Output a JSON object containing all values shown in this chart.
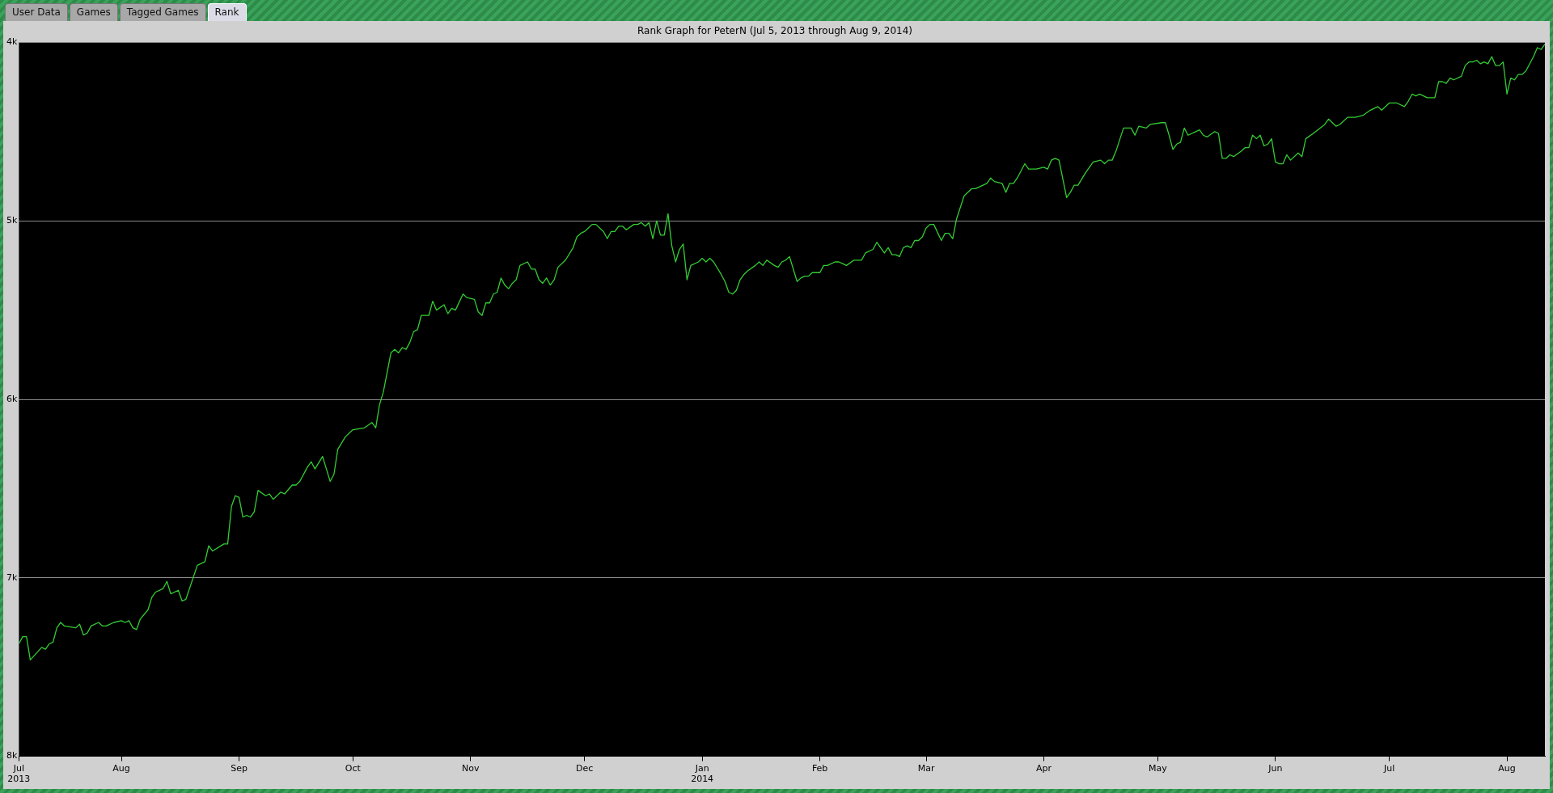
{
  "chart_data": {
    "type": "line",
    "title": "Rank Graph for PeterN (Jul 5, 2013 through Aug 9, 2014)",
    "annotations": [
      "User Data",
      "Games",
      "Tagged Games",
      "Rank"
    ],
    "color": "#33cc33",
    "grid": "y",
    "legend": false,
    "ylim": [
      8,
      4
    ],
    "yticks": [
      {
        "value": 4,
        "label": "4k"
      },
      {
        "value": 5,
        "label": "5k"
      },
      {
        "value": 6,
        "label": "6k"
      },
      {
        "value": 7,
        "label": "7k"
      },
      {
        "value": 8,
        "label": "8k"
      }
    ],
    "xlim": [
      "2013-07-05",
      "2014-08-11"
    ],
    "xticks": [
      {
        "value": "2013-07-05",
        "label": "Jul\n2013"
      },
      {
        "value": "2013-08-01",
        "label": "Aug"
      },
      {
        "value": "2013-09-01",
        "label": "Sep"
      },
      {
        "value": "2013-10-01",
        "label": "Oct"
      },
      {
        "value": "2013-11-01",
        "label": "Nov"
      },
      {
        "value": "2013-12-01",
        "label": "Dec"
      },
      {
        "value": "2014-01-01",
        "label": "Jan\n2014"
      },
      {
        "value": "2014-02-01",
        "label": "Feb"
      },
      {
        "value": "2014-03-01",
        "label": "Mar"
      },
      {
        "value": "2014-04-01",
        "label": "Apr"
      },
      {
        "value": "2014-05-01",
        "label": "May"
      },
      {
        "value": "2014-06-01",
        "label": "Jun"
      },
      {
        "value": "2014-07-01",
        "label": "Jul"
      },
      {
        "value": "2014-08-01",
        "label": "Aug"
      }
    ],
    "x": [
      "2013-07-05",
      "2013-07-06",
      "2013-07-07",
      "2013-07-08",
      "2013-07-11",
      "2013-07-12",
      "2013-07-13",
      "2013-07-14",
      "2013-07-15",
      "2013-07-16",
      "2013-07-17",
      "2013-07-20",
      "2013-07-21",
      "2013-07-22",
      "2013-07-23",
      "2013-07-24",
      "2013-07-26",
      "2013-07-27",
      "2013-07-28",
      "2013-07-30",
      "2013-08-01",
      "2013-08-02",
      "2013-08-03",
      "2013-08-04",
      "2013-08-05",
      "2013-08-06",
      "2013-08-08",
      "2013-08-09",
      "2013-08-10",
      "2013-08-12",
      "2013-08-13",
      "2013-08-14",
      "2013-08-16",
      "2013-08-17",
      "2013-08-18",
      "2013-08-21",
      "2013-08-23",
      "2013-08-24",
      "2013-08-25",
      "2013-08-28",
      "2013-08-29",
      "2013-08-30",
      "2013-08-31",
      "2013-09-01",
      "2013-09-02",
      "2013-09-03",
      "2013-09-04",
      "2013-09-05",
      "2013-09-06",
      "2013-09-08",
      "2013-09-09",
      "2013-09-10",
      "2013-09-12",
      "2013-09-13",
      "2013-09-15",
      "2013-09-16",
      "2013-09-17",
      "2013-09-19",
      "2013-09-20",
      "2013-09-21",
      "2013-09-23",
      "2013-09-25",
      "2013-09-26",
      "2013-09-27",
      "2013-09-29",
      "2013-10-01",
      "2013-10-04",
      "2013-10-06",
      "2013-10-07",
      "2013-10-08",
      "2013-10-09",
      "2013-10-11",
      "2013-10-12",
      "2013-10-13",
      "2013-10-14",
      "2013-10-15",
      "2013-10-16",
      "2013-10-17",
      "2013-10-18",
      "2013-10-19",
      "2013-10-21",
      "2013-10-22",
      "2013-10-23",
      "2013-10-25",
      "2013-10-26",
      "2013-10-27",
      "2013-10-28",
      "2013-10-30",
      "2013-10-31",
      "2013-11-02",
      "2013-11-03",
      "2013-11-04",
      "2013-11-05",
      "2013-11-06",
      "2013-11-07",
      "2013-11-08",
      "2013-11-09",
      "2013-11-10",
      "2013-11-11",
      "2013-11-12",
      "2013-11-13",
      "2013-11-14",
      "2013-11-16",
      "2013-11-17",
      "2013-11-18",
      "2013-11-19",
      "2013-11-20",
      "2013-11-21",
      "2013-11-22",
      "2013-11-23",
      "2013-11-24",
      "2013-11-26",
      "2013-11-28",
      "2013-11-29",
      "2013-11-30",
      "2013-12-01",
      "2013-12-03",
      "2013-12-04",
      "2013-12-06",
      "2013-12-07",
      "2013-12-08",
      "2013-12-09",
      "2013-12-10",
      "2013-12-11",
      "2013-12-12",
      "2013-12-14",
      "2013-12-15",
      "2013-12-16",
      "2013-12-17",
      "2013-12-18",
      "2013-12-19",
      "2013-12-20",
      "2013-12-21",
      "2013-12-22",
      "2013-12-23",
      "2013-12-24",
      "2013-12-25",
      "2013-12-26",
      "2013-12-27",
      "2013-12-28",
      "2013-12-29",
      "2013-12-31",
      "2014-01-01",
      "2014-01-02",
      "2014-01-03",
      "2014-01-04",
      "2014-01-06",
      "2014-01-07",
      "2014-01-08",
      "2014-01-09",
      "2014-01-10",
      "2014-01-11",
      "2014-01-12",
      "2014-01-13",
      "2014-01-15",
      "2014-01-16",
      "2014-01-17",
      "2014-01-18",
      "2014-01-20",
      "2014-01-21",
      "2014-01-22",
      "2014-01-23",
      "2014-01-24",
      "2014-01-26",
      "2014-01-27",
      "2014-01-28",
      "2014-01-29",
      "2014-01-30",
      "2014-02-01",
      "2014-02-02",
      "2014-02-03",
      "2014-02-05",
      "2014-02-06",
      "2014-02-07",
      "2014-02-08",
      "2014-02-10",
      "2014-02-12",
      "2014-02-13",
      "2014-02-15",
      "2014-02-16",
      "2014-02-17",
      "2014-02-18",
      "2014-02-19",
      "2014-02-20",
      "2014-02-21",
      "2014-02-22",
      "2014-02-23",
      "2014-02-24",
      "2014-02-25",
      "2014-02-26",
      "2014-02-27",
      "2014-02-28",
      "2014-03-01",
      "2014-03-02",
      "2014-03-03",
      "2014-03-05",
      "2014-03-06",
      "2014-03-07",
      "2014-03-08",
      "2014-03-09",
      "2014-03-11",
      "2014-03-13",
      "2014-03-14",
      "2014-03-17",
      "2014-03-18",
      "2014-03-19",
      "2014-03-21",
      "2014-03-22",
      "2014-03-23",
      "2014-03-24",
      "2014-03-25",
      "2014-03-27",
      "2014-03-28",
      "2014-03-30",
      "2014-04-01",
      "2014-04-02",
      "2014-04-03",
      "2014-04-04",
      "2014-04-05",
      "2014-04-07",
      "2014-04-08",
      "2014-04-09",
      "2014-04-10",
      "2014-04-12",
      "2014-04-14",
      "2014-04-16",
      "2014-04-17",
      "2014-04-18",
      "2014-04-19",
      "2014-04-20",
      "2014-04-22",
      "2014-04-24",
      "2014-04-25",
      "2014-04-26",
      "2014-04-28",
      "2014-04-29",
      "2014-05-02",
      "2014-05-03",
      "2014-05-04",
      "2014-05-05",
      "2014-05-06",
      "2014-05-07",
      "2014-05-08",
      "2014-05-09",
      "2014-05-11",
      "2014-05-12",
      "2014-05-13",
      "2014-05-14",
      "2014-05-16",
      "2014-05-17",
      "2014-05-18",
      "2014-05-19",
      "2014-05-20",
      "2014-05-21",
      "2014-05-23",
      "2014-05-24",
      "2014-05-25",
      "2014-05-26",
      "2014-05-27",
      "2014-05-28",
      "2014-05-29",
      "2014-05-30",
      "2014-05-31",
      "2014-06-01",
      "2014-06-02",
      "2014-06-03",
      "2014-06-04",
      "2014-06-05",
      "2014-06-07",
      "2014-06-08",
      "2014-06-09",
      "2014-06-11",
      "2014-06-14",
      "2014-06-15",
      "2014-06-17",
      "2014-06-18",
      "2014-06-20",
      "2014-06-21",
      "2014-06-22",
      "2014-06-24",
      "2014-06-26",
      "2014-06-28",
      "2014-06-29",
      "2014-07-01",
      "2014-07-03",
      "2014-07-05",
      "2014-07-06",
      "2014-07-07",
      "2014-07-08",
      "2014-07-09",
      "2014-07-11",
      "2014-07-13",
      "2014-07-14",
      "2014-07-15",
      "2014-07-16",
      "2014-07-17",
      "2014-07-18",
      "2014-07-20",
      "2014-07-21",
      "2014-07-22",
      "2014-07-23",
      "2014-07-24",
      "2014-07-25",
      "2014-07-26",
      "2014-07-27",
      "2014-07-28",
      "2014-07-29",
      "2014-07-30",
      "2014-07-31",
      "2014-08-01",
      "2014-08-02",
      "2014-08-03",
      "2014-08-04",
      "2014-08-05",
      "2014-08-06",
      "2014-08-08",
      "2014-08-09",
      "2014-08-10",
      "2014-08-11"
    ],
    "values": [
      7.37,
      7.33,
      7.33,
      7.46,
      7.39,
      7.4,
      7.37,
      7.36,
      7.28,
      7.25,
      7.27,
      7.28,
      7.26,
      7.32,
      7.31,
      7.27,
      7.25,
      7.27,
      7.27,
      7.25,
      7.24,
      7.25,
      7.24,
      7.28,
      7.29,
      7.23,
      7.18,
      7.11,
      7.08,
      7.06,
      7.02,
      7.09,
      7.07,
      7.13,
      7.12,
      6.93,
      6.91,
      6.82,
      6.85,
      6.81,
      6.81,
      6.6,
      6.54,
      6.55,
      6.66,
      6.65,
      6.66,
      6.63,
      6.51,
      6.54,
      6.53,
      6.56,
      6.52,
      6.53,
      6.48,
      6.48,
      6.46,
      6.38,
      6.35,
      6.39,
      6.32,
      6.46,
      6.42,
      6.28,
      6.21,
      6.17,
      6.16,
      6.13,
      6.16,
      6.03,
      5.96,
      5.74,
      5.72,
      5.74,
      5.71,
      5.72,
      5.68,
      5.62,
      5.61,
      5.53,
      5.53,
      5.45,
      5.5,
      5.47,
      5.52,
      5.49,
      5.5,
      5.41,
      5.43,
      5.44,
      5.51,
      5.53,
      5.46,
      5.46,
      5.41,
      5.4,
      5.32,
      5.36,
      5.38,
      5.35,
      5.33,
      5.25,
      5.23,
      5.27,
      5.27,
      5.33,
      5.35,
      5.32,
      5.36,
      5.33,
      5.26,
      5.22,
      5.15,
      5.09,
      5.07,
      5.06,
      5.02,
      5.02,
      5.06,
      5.1,
      5.06,
      5.06,
      5.03,
      5.03,
      5.05,
      5.02,
      5.02,
      5.01,
      5.03,
      5.01,
      5.1,
      5.0,
      5.08,
      5.08,
      4.96,
      5.14,
      5.23,
      5.16,
      5.13,
      5.33,
      5.25,
      5.23,
      5.21,
      5.23,
      5.21,
      5.23,
      5.3,
      5.34,
      5.4,
      5.41,
      5.39,
      5.33,
      5.3,
      5.28,
      5.25,
      5.23,
      5.25,
      5.22,
      5.25,
      5.26,
      5.23,
      5.22,
      5.2,
      5.34,
      5.32,
      5.31,
      5.31,
      5.29,
      5.29,
      5.25,
      5.25,
      5.23,
      5.23,
      5.24,
      5.25,
      5.22,
      5.22,
      5.18,
      5.16,
      5.12,
      5.15,
      5.18,
      5.15,
      5.19,
      5.19,
      5.2,
      5.15,
      5.14,
      5.15,
      5.11,
      5.11,
      5.09,
      5.04,
      5.02,
      5.02,
      5.11,
      5.07,
      5.07,
      5.1,
      4.99,
      4.86,
      4.82,
      4.82,
      4.79,
      4.76,
      4.78,
      4.79,
      4.84,
      4.79,
      4.79,
      4.76,
      4.68,
      4.71,
      4.71,
      4.7,
      4.71,
      4.66,
      4.65,
      4.66,
      4.87,
      4.84,
      4.8,
      4.8,
      4.73,
      4.67,
      4.66,
      4.68,
      4.66,
      4.66,
      4.61,
      4.48,
      4.48,
      4.52,
      4.47,
      4.48,
      4.46,
      4.45,
      4.45,
      4.52,
      4.6,
      4.57,
      4.56,
      4.48,
      4.52,
      4.5,
      4.49,
      4.52,
      4.53,
      4.5,
      4.51,
      4.65,
      4.65,
      4.63,
      4.64,
      4.61,
      4.59,
      4.59,
      4.52,
      4.54,
      4.52,
      4.58,
      4.57,
      4.54,
      4.67,
      4.68,
      4.68,
      4.63,
      4.66,
      4.62,
      4.64,
      4.54,
      4.51,
      4.46,
      4.43,
      4.47,
      4.46,
      4.42,
      4.42,
      4.42,
      4.41,
      4.38,
      4.36,
      4.38,
      4.34,
      4.34,
      4.36,
      4.33,
      4.29,
      4.3,
      4.29,
      4.31,
      4.31,
      4.22,
      4.22,
      4.23,
      4.2,
      4.21,
      4.19,
      4.13,
      4.11,
      4.11,
      4.1,
      4.12,
      4.11,
      4.12,
      4.08,
      4.13,
      4.13,
      4.11,
      4.29,
      4.2,
      4.21,
      4.18,
      4.18,
      4.16,
      4.08,
      4.03,
      4.04,
      4.01
    ]
  }
}
